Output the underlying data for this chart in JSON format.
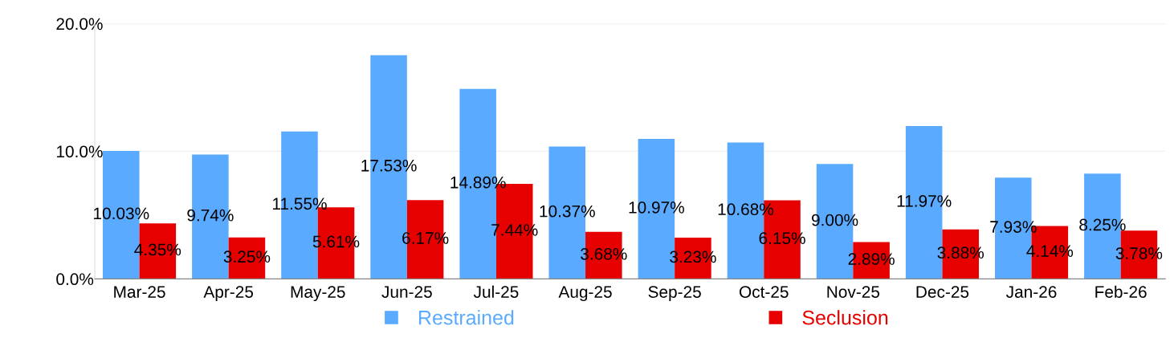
{
  "chart_data": {
    "type": "bar",
    "categories": [
      "Mar-25",
      "Apr-25",
      "May-25",
      "Jun-25",
      "Jul-25",
      "Aug-25",
      "Sep-25",
      "Oct-25",
      "Nov-25",
      "Dec-25",
      "Jan-26",
      "Feb-26"
    ],
    "series": [
      {
        "name": "Restrained",
        "color": "#5aabff",
        "values": [
          10.03,
          9.74,
          11.55,
          17.53,
          14.89,
          10.37,
          10.97,
          10.68,
          9.0,
          11.97,
          7.93,
          8.25
        ],
        "value_labels": [
          "10.03%",
          "9.74%",
          "11.55%",
          "17.53%",
          "14.89%",
          "10.37%",
          "10.97%",
          "10.68%",
          "9.00%",
          "11.97%",
          "7.93%",
          "8.25%"
        ]
      },
      {
        "name": "Seclusion",
        "color": "#e60000",
        "values": [
          4.35,
          3.25,
          5.61,
          6.17,
          7.44,
          3.68,
          3.23,
          6.15,
          2.89,
          3.88,
          4.14,
          3.78
        ],
        "value_labels": [
          "4.35%",
          "3.25%",
          "5.61%",
          "6.17%",
          "7.44%",
          "3.68%",
          "3.23%",
          "6.15%",
          "2.89%",
          "3.88%",
          "4.14%",
          "3.78%"
        ]
      }
    ],
    "ylim": [
      0,
      20
    ],
    "yticks": [
      {
        "value": 0,
        "label": "0.0%"
      },
      {
        "value": 10,
        "label": "10.0%"
      },
      {
        "value": 20,
        "label": "20.0%"
      }
    ],
    "grid": "y",
    "legend": "bottom"
  }
}
